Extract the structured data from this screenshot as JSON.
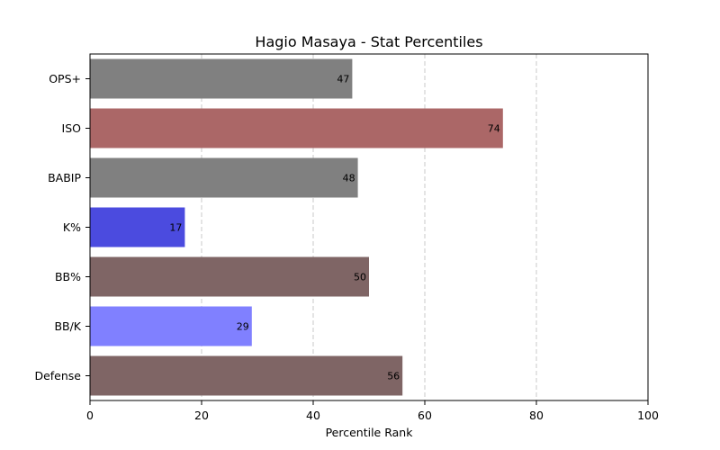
{
  "chart_data": {
    "type": "bar",
    "orientation": "horizontal",
    "title": "Hagio Masaya - Stat Percentiles",
    "xlabel": "Percentile Rank",
    "ylabel": "",
    "xlim": [
      0,
      100
    ],
    "x_ticks": [
      0,
      20,
      40,
      60,
      80,
      100
    ],
    "grid": "vertical dashed",
    "categories": [
      "OPS+",
      "ISO",
      "BABIP",
      "K%",
      "BB%",
      "BB/K",
      "Defense"
    ],
    "values": [
      47,
      74,
      48,
      17,
      50,
      29,
      56
    ],
    "colors": [
      "#808080",
      "#ab6767",
      "#808080",
      "#4b4bdf",
      "#7f6565",
      "#8080ff",
      "#7f6565"
    ]
  }
}
